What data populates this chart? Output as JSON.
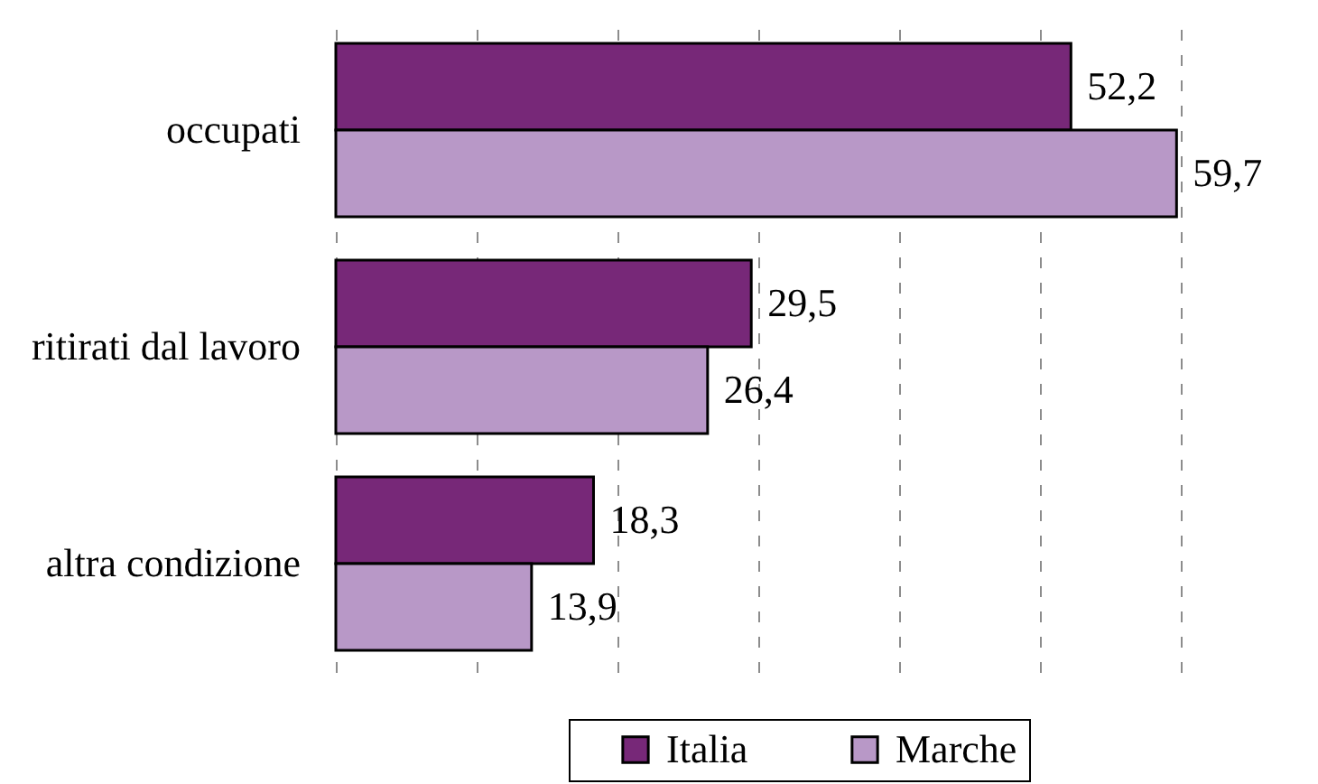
{
  "chart_data": {
    "type": "bar",
    "orientation": "horizontal",
    "categories": [
      "occupati",
      "ritirati dal lavoro",
      "altra condizione"
    ],
    "series": [
      {
        "name": "Italia",
        "color": "#772878",
        "values": [
          52.2,
          29.5,
          18.3
        ],
        "value_labels": [
          "52,2",
          "29,5",
          "18,3"
        ]
      },
      {
        "name": "Marche",
        "color": "#b898c7",
        "values": [
          59.7,
          26.4,
          13.9
        ],
        "value_labels": [
          "59,7",
          "26,4",
          "13,9"
        ]
      }
    ],
    "xlim": [
      0,
      60
    ],
    "xticks": [
      {
        "value": 0,
        "label": null
      },
      {
        "value": 10,
        "label": null
      },
      {
        "value": 20,
        "label": null
      },
      {
        "value": 30,
        "label": null
      },
      {
        "value": 40,
        "label": null
      },
      {
        "value": 50,
        "label": null
      },
      {
        "value": 60,
        "label": null
      }
    ],
    "tick_labels": "y",
    "grid": "x",
    "legend": "bottom"
  }
}
